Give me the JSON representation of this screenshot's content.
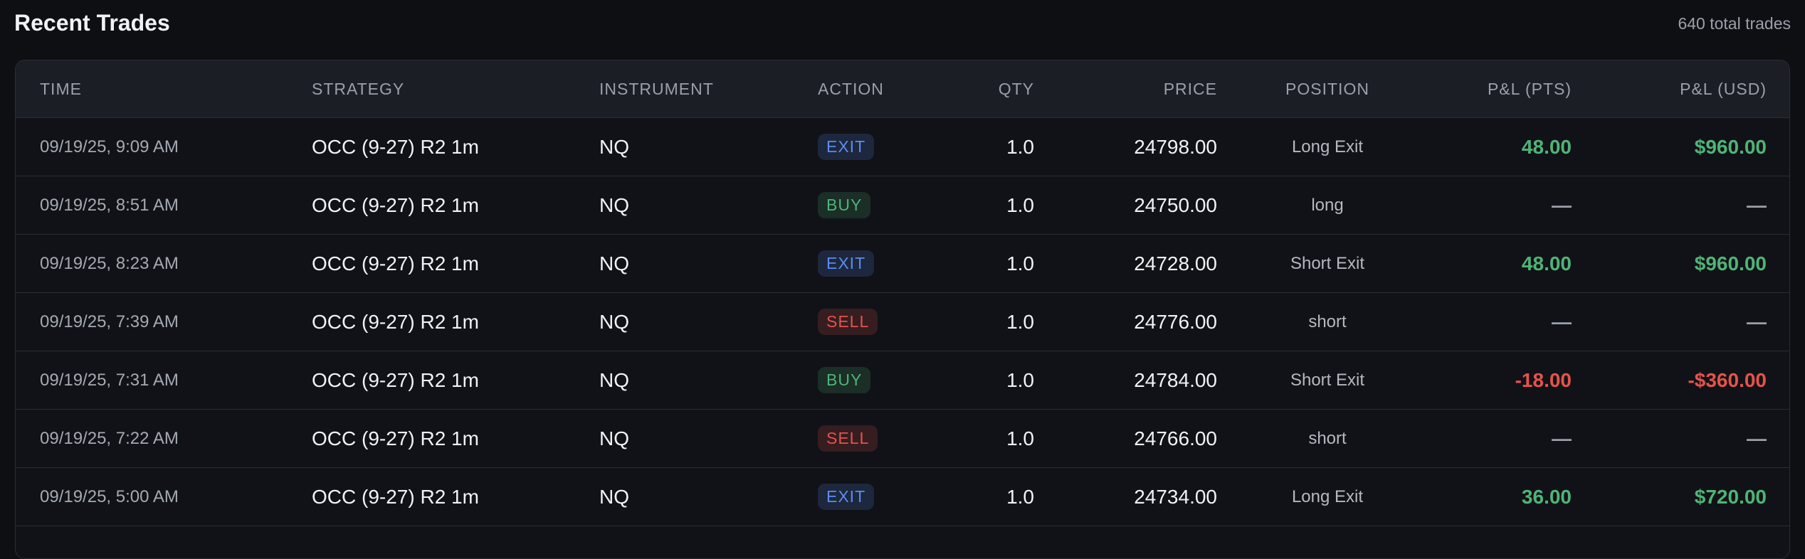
{
  "header": {
    "title": "Recent Trades",
    "count": "640 total trades"
  },
  "table": {
    "columns": [
      "TIME",
      "STRATEGY",
      "INSTRUMENT",
      "ACTION",
      "QTY",
      "PRICE",
      "POSITION",
      "P&L (PTS)",
      "P&L (USD)"
    ],
    "rows": [
      {
        "time": "09/19/25, 9:09 AM",
        "strategy": "OCC (9-27) R2 1m",
        "instrument": "NQ",
        "action": "EXIT",
        "action_color": "#5b8def",
        "qty": "1.0",
        "price": "24798.00",
        "position": "Long Exit",
        "pnl_pts": "48.00",
        "pnl_usd": "$960.00"
      },
      {
        "time": "09/19/25, 8:51 AM",
        "strategy": "OCC (9-27) R2 1m",
        "instrument": "NQ",
        "action": "BUY",
        "action_color": "#4fb477",
        "qty": "1.0",
        "price": "24750.00",
        "position": "long",
        "pnl_pts": "—",
        "pnl_usd": "—"
      },
      {
        "time": "09/19/25, 8:23 AM",
        "strategy": "OCC (9-27) R2 1m",
        "instrument": "NQ",
        "action": "EXIT",
        "action_color": "#5b8def",
        "qty": "1.0",
        "price": "24728.00",
        "position": "Short Exit",
        "pnl_pts": "48.00",
        "pnl_usd": "$960.00"
      },
      {
        "time": "09/19/25, 7:39 AM",
        "strategy": "OCC (9-27) R2 1m",
        "instrument": "NQ",
        "action": "SELL",
        "action_color": "#e5534b",
        "qty": "1.0",
        "price": "24776.00",
        "position": "short",
        "pnl_pts": "—",
        "pnl_usd": "—"
      },
      {
        "time": "09/19/25, 7:31 AM",
        "strategy": "OCC (9-27) R2 1m",
        "instrument": "NQ",
        "action": "BUY",
        "action_color": "#4fb477",
        "qty": "1.0",
        "price": "24784.00",
        "position": "Short Exit",
        "pnl_pts": "-18.00",
        "pnl_usd": "-$360.00"
      },
      {
        "time": "09/19/25, 7:22 AM",
        "strategy": "OCC (9-27) R2 1m",
        "instrument": "NQ",
        "action": "SELL",
        "action_color": "#e5534b",
        "qty": "1.0",
        "price": "24766.00",
        "position": "short",
        "pnl_pts": "—",
        "pnl_usd": "—"
      },
      {
        "time": "09/19/25, 5:00 AM",
        "strategy": "OCC (9-27) R2 1m",
        "instrument": "NQ",
        "action": "EXIT",
        "action_color": "#5b8def",
        "qty": "1.0",
        "price": "24734.00",
        "position": "Long Exit",
        "pnl_pts": "36.00",
        "pnl_usd": "$720.00"
      }
    ]
  }
}
